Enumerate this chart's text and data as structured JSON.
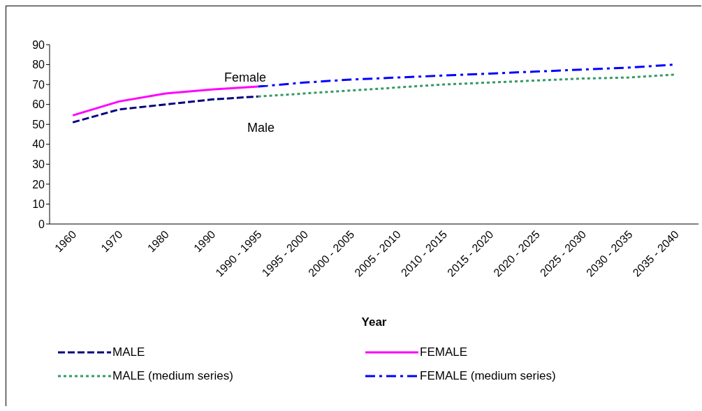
{
  "chart_data": {
    "type": "line",
    "xlabel": "Year",
    "categories": [
      "1960",
      "1970",
      "1980",
      "1990",
      "1990 - 1995",
      "1995 - 2000",
      "2000 - 2005",
      "2005 - 2010",
      "2010 - 2015",
      "2015 - 2020",
      "2020 - 2025",
      "2025 - 2030",
      "2030 - 2035",
      "2035 - 2040"
    ],
    "series": [
      {
        "name": "MALE",
        "color": "#000080",
        "line_style": "dashed",
        "values": [
          51,
          57.5,
          60,
          62.5,
          64,
          null,
          null,
          null,
          null,
          null,
          null,
          null,
          null,
          null
        ]
      },
      {
        "name": "FEMALE",
        "color": "#ff00ff",
        "line_style": "solid",
        "values": [
          54.5,
          61.5,
          65.5,
          67.5,
          69,
          null,
          null,
          null,
          null,
          null,
          null,
          null,
          null,
          null
        ]
      },
      {
        "name": "MALE (medium series)",
        "color": "#339966",
        "line_style": "dotted",
        "values": [
          null,
          null,
          null,
          null,
          64,
          65.5,
          67,
          68.5,
          70,
          71,
          72,
          73,
          73.5,
          75
        ]
      },
      {
        "name": "FEMALE (medium series)",
        "color": "#0000ff",
        "line_style": "dashdot",
        "values": [
          null,
          null,
          null,
          null,
          69,
          71,
          72.5,
          73.5,
          74.5,
          75.5,
          76.5,
          77.5,
          78.5,
          80
        ]
      }
    ],
    "ylim": [
      0,
      90
    ],
    "yticks": [
      0,
      10,
      20,
      30,
      40,
      50,
      60,
      70,
      80,
      90
    ],
    "grid": false,
    "legend": "bottom",
    "marker": "none",
    "annotations": [
      "Female",
      "Male"
    ]
  }
}
